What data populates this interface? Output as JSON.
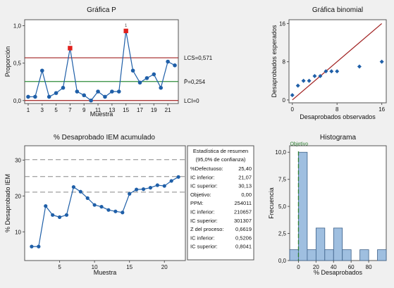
{
  "colors": {
    "background": "#f0f0f0",
    "plot_bg": "#ffffff",
    "series": "#1f5fa8",
    "marker": "#1f5fa8",
    "out_of_control": "#e0201c",
    "ucl_line": "#a02020",
    "center_line": "#2e8b3a",
    "lcl_line": "#a02020",
    "hist_bar": "#9fbfe0",
    "ref_line": "#a02020",
    "target_line": "#2e7d32",
    "dash_line": "#888888"
  },
  "chart_data": [
    {
      "id": "p-chart",
      "type": "line",
      "title": "Gráfica P",
      "xlabel": "Muestra",
      "ylabel": "Proporción",
      "xlim": [
        0.5,
        22.5
      ],
      "ylim": [
        -0.04,
        1.08
      ],
      "xticks": [
        1,
        3,
        5,
        7,
        9,
        11,
        13,
        15,
        17,
        19,
        21
      ],
      "yticks": [
        0.0,
        0.5,
        1.0
      ],
      "ytick_labels": [
        "0,0",
        "0,5",
        "1,0"
      ],
      "x": [
        1,
        2,
        3,
        4,
        5,
        6,
        7,
        8,
        9,
        10,
        11,
        12,
        13,
        14,
        15,
        16,
        17,
        18,
        19,
        20,
        21,
        22
      ],
      "values": [
        0.05,
        0.05,
        0.4,
        0.05,
        0.1,
        0.17,
        0.7,
        0.12,
        0.07,
        0.0,
        0.12,
        0.05,
        0.12,
        0.12,
        0.93,
        0.4,
        0.24,
        0.3,
        0.35,
        0.17,
        0.52,
        0.47
      ],
      "out_of_control_points": [
        7,
        15
      ],
      "out_of_control_marker_label": "1",
      "limits": [
        {
          "name": "LCS",
          "value": 0.571,
          "label": "LCS=0,571"
        },
        {
          "name": "P",
          "value": 0.254,
          "label": "P̄=0,254"
        },
        {
          "name": "LCI",
          "value": 0.0,
          "label": "LCI=0"
        }
      ],
      "grid": false
    },
    {
      "id": "binomial-chart",
      "type": "scatter",
      "title": "Gráfica binomial",
      "xlabel": "Desaprobados observados",
      "ylabel": "Desaprobados esperados",
      "xlim": [
        -0.6,
        16.8
      ],
      "ylim": [
        -0.6,
        16.8
      ],
      "xticks": [
        0,
        8,
        16
      ],
      "yticks": [
        0,
        8,
        16
      ],
      "reference_line": [
        [
          0,
          0
        ],
        [
          16,
          16
        ]
      ],
      "x": [
        0,
        1,
        2,
        3,
        4,
        5,
        6,
        7,
        8,
        12,
        16
      ],
      "y": [
        1,
        3,
        4,
        4,
        5,
        5,
        6,
        6,
        6,
        7,
        8
      ],
      "grid": false
    },
    {
      "id": "cumulative-chart",
      "type": "line",
      "title": "%  Desaprobado IEM acumulado",
      "xlabel": "Muestra",
      "ylabel": "% Desaprobado IEM",
      "xlim": [
        0,
        23
      ],
      "ylim": [
        2,
        34
      ],
      "xticks": [
        5,
        10,
        15,
        20
      ],
      "yticks": [
        10,
        20,
        30
      ],
      "x": [
        1,
        2,
        3,
        4,
        5,
        6,
        7,
        8,
        9,
        10,
        11,
        12,
        13,
        14,
        15,
        16,
        17,
        18,
        19,
        20,
        21,
        22
      ],
      "values": [
        5.9,
        5.9,
        17.2,
        14.7,
        14.1,
        14.7,
        22.5,
        21.2,
        19.4,
        17.5,
        17.0,
        16.1,
        15.7,
        15.4,
        20.6,
        21.8,
        21.9,
        22.3,
        23.0,
        22.8,
        24.2,
        25.3
      ],
      "dashed_lines": [
        21.07,
        25.4,
        30.13
      ],
      "summary_box": {
        "title": "Estadística de resumen",
        "subtitle": "(95,0% de confianza)",
        "rows": [
          {
            "label": "%Defectuoso:",
            "value": "25,40"
          },
          {
            "label": "IC inferior:",
            "value": "21,07"
          },
          {
            "label": "IC superior:",
            "value": "30,13"
          },
          {
            "label": "Objetivo:",
            "value": "0,00"
          },
          {
            "label": "PPM:",
            "value": "254011"
          },
          {
            "label": "IC inferior:",
            "value": "210657"
          },
          {
            "label": "IC superior:",
            "value": "301307"
          },
          {
            "label": "Z del proceso:",
            "value": "0,6619"
          },
          {
            "label": "IC inferior:",
            "value": "0,5206"
          },
          {
            "label": "IC superior:",
            "value": "0,8041"
          }
        ]
      },
      "grid": false
    },
    {
      "id": "histogram",
      "type": "bar",
      "title": "Histograma",
      "xlabel": "% Desaprobados",
      "ylabel": "Frecuencia",
      "xlim": [
        -10,
        100
      ],
      "ylim": [
        0,
        10.6
      ],
      "xticks": [
        0,
        20,
        40,
        60,
        80
      ],
      "yticks": [
        0.0,
        2.5,
        5.0,
        7.5,
        10.0
      ],
      "ytick_labels": [
        "0,0",
        "2,5",
        "5,0",
        "7,5",
        "10,0"
      ],
      "bins": [
        {
          "start": -10,
          "end": 0,
          "count": 1
        },
        {
          "start": 0,
          "end": 10,
          "count": 10
        },
        {
          "start": 10,
          "end": 20,
          "count": 1
        },
        {
          "start": 20,
          "end": 30,
          "count": 3
        },
        {
          "start": 30,
          "end": 40,
          "count": 1
        },
        {
          "start": 40,
          "end": 50,
          "count": 3
        },
        {
          "start": 50,
          "end": 60,
          "count": 1
        },
        {
          "start": 60,
          "end": 70,
          "count": 0
        },
        {
          "start": 70,
          "end": 80,
          "count": 1
        },
        {
          "start": 80,
          "end": 90,
          "count": 0
        },
        {
          "start": 90,
          "end": 100,
          "count": 1
        }
      ],
      "target_label": "Objetivo",
      "target_value": 0,
      "grid": false
    }
  ]
}
